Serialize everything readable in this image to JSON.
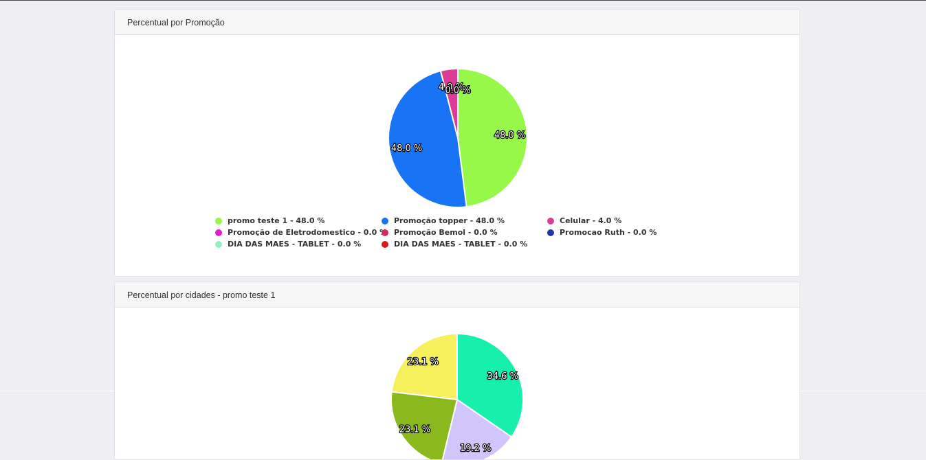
{
  "panels": [
    {
      "title": "Percentual por Promoção"
    },
    {
      "title": "Percentual por cidades - promo teste 1"
    }
  ],
  "chart_data": [
    {
      "type": "pie",
      "title": "Percentual por Promoção",
      "categories": [
        "promo teste 1",
        "Promoção topper",
        "Celular",
        "Promoção de Eletrodomestico",
        "Promoção Bemol",
        "Promocao Ruth",
        "DIA DAS MAES - TABLET",
        "DIA DAS MAES - TABLET"
      ],
      "values": [
        48.0,
        48.0,
        4.0,
        0.0,
        0.0,
        0.0,
        0.0,
        0.0
      ],
      "colors": [
        "#97f84a",
        "#1874f5",
        "#dc3c97",
        "#e01ecc",
        "#d52a5c",
        "#2137a6",
        "#94efc0",
        "#da1a1a"
      ],
      "slice_labels": [
        "48.0 %",
        "48.0 %",
        "4.0 %",
        "0.0 %",
        "0.0 %",
        "0.0 %",
        "0.0 %",
        "0.0 %"
      ],
      "legend": [
        "promo teste 1 - 48.0 %",
        "Promoção topper - 48.0 %",
        "Celular - 4.0 %",
        "Promoção de Eletrodomestico - 0.0 %",
        "Promoção Bemol - 0.0 %",
        "Promocao Ruth - 0.0 %",
        "DIA DAS MAES - TABLET - 0.0 %",
        "DIA DAS MAES - TABLET - 0.0 %"
      ]
    },
    {
      "type": "pie",
      "title": "Percentual por cidades - promo teste 1",
      "values": [
        34.6,
        19.2,
        23.1,
        23.1
      ],
      "colors": [
        "#16f0ac",
        "#d1c5fb",
        "#8bb81c",
        "#f6f05c"
      ],
      "slice_labels": [
        "34.6 %",
        "19.2 %",
        "23.1 %",
        "23.1 %"
      ]
    }
  ]
}
